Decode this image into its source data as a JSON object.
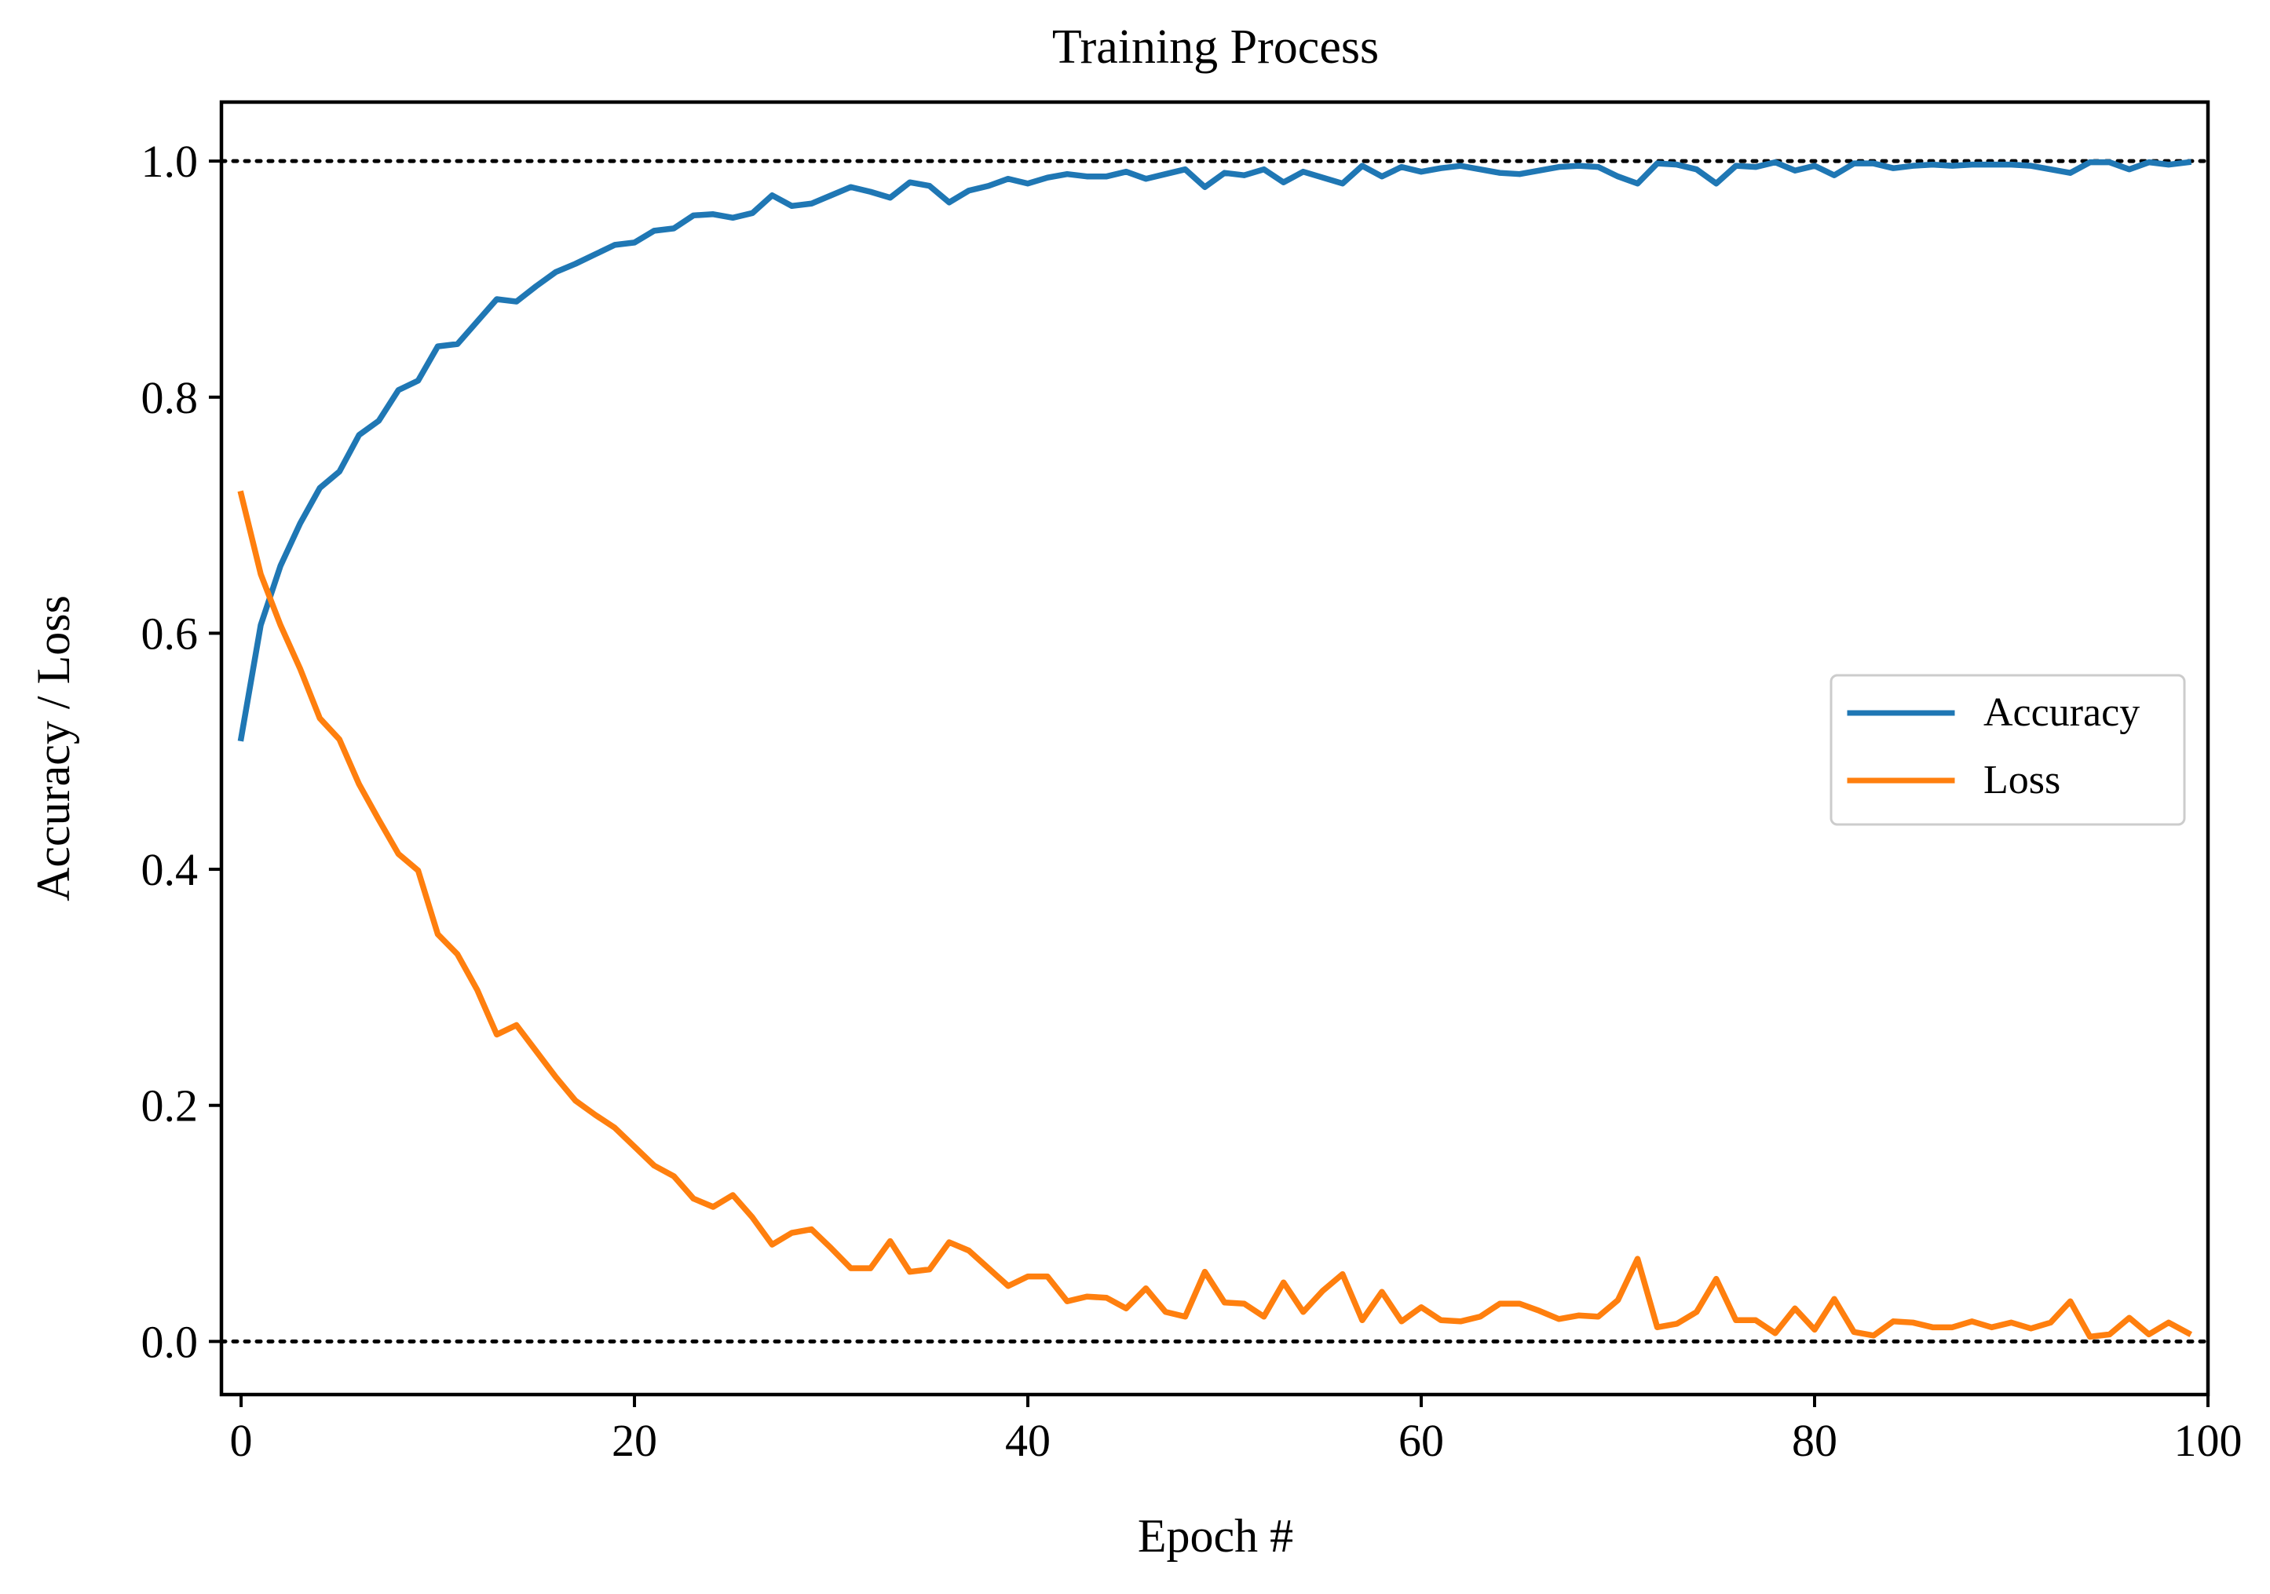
{
  "chart_data": {
    "type": "line",
    "title": "Training Process",
    "xlabel": "Epoch #",
    "ylabel": "Accuracy / Loss",
    "xlim": [
      -1,
      100
    ],
    "ylim": [
      -0.045,
      1.05
    ],
    "xticks": [
      0,
      20,
      40,
      60,
      80,
      100
    ],
    "xtick_labels": [
      "0",
      "20",
      "40",
      "60",
      "80",
      "100"
    ],
    "yticks": [
      0.0,
      0.2,
      0.4,
      0.6,
      0.8,
      1.0
    ],
    "ytick_labels": [
      "0.0",
      "0.2",
      "0.4",
      "0.6",
      "0.8",
      "1.0"
    ],
    "reference_lines": [
      {
        "y": 1.0,
        "style": "dotted",
        "color": "#000000"
      },
      {
        "y": 0.0,
        "style": "dotted",
        "color": "#000000"
      }
    ],
    "legend": {
      "position": "center-right"
    },
    "series": [
      {
        "name": "Accuracy",
        "color": "#1f77b4",
        "values": [
          0.511,
          0.607,
          0.657,
          0.693,
          0.723,
          0.737,
          0.768,
          0.78,
          0.806,
          0.814,
          0.843,
          0.845,
          0.864,
          0.883,
          0.881,
          0.894,
          0.906,
          0.913,
          0.921,
          0.929,
          0.931,
          0.941,
          0.943,
          0.954,
          0.955,
          0.952,
          0.956,
          0.971,
          0.962,
          0.964,
          0.971,
          0.978,
          0.974,
          0.969,
          0.982,
          0.979,
          0.965,
          0.975,
          0.979,
          0.985,
          0.981,
          0.986,
          0.989,
          0.987,
          0.987,
          0.991,
          0.985,
          0.989,
          0.993,
          0.978,
          0.99,
          0.988,
          0.993,
          0.982,
          0.991,
          0.986,
          0.981,
          0.996,
          0.987,
          0.995,
          0.991,
          0.994,
          0.996,
          0.993,
          0.99,
          0.989,
          0.992,
          0.995,
          0.996,
          0.995,
          0.987,
          0.981,
          0.998,
          0.997,
          0.993,
          0.981,
          0.996,
          0.995,
          0.999,
          0.992,
          0.996,
          0.988,
          0.998,
          0.998,
          0.994,
          0.996,
          0.997,
          0.996,
          0.997,
          0.997,
          0.997,
          0.996,
          0.993,
          0.99,
          0.999,
          0.999,
          0.993,
          0.999,
          0.997,
          0.999
        ]
      },
      {
        "name": "Loss",
        "color": "#ff7f0e",
        "values": [
          0.718,
          0.65,
          0.607,
          0.57,
          0.528,
          0.51,
          0.472,
          0.442,
          0.413,
          0.399,
          0.345,
          0.328,
          0.298,
          0.26,
          0.268,
          0.246,
          0.224,
          0.204,
          0.192,
          0.181,
          0.165,
          0.149,
          0.14,
          0.121,
          0.114,
          0.124,
          0.105,
          0.082,
          0.092,
          0.095,
          0.079,
          0.062,
          0.062,
          0.085,
          0.059,
          0.061,
          0.084,
          0.077,
          0.062,
          0.047,
          0.055,
          0.055,
          0.034,
          0.038,
          0.037,
          0.028,
          0.045,
          0.025,
          0.021,
          0.059,
          0.033,
          0.032,
          0.021,
          0.05,
          0.025,
          0.043,
          0.057,
          0.018,
          0.042,
          0.017,
          0.029,
          0.018,
          0.017,
          0.021,
          0.032,
          0.032,
          0.026,
          0.019,
          0.022,
          0.021,
          0.035,
          0.07,
          0.012,
          0.015,
          0.025,
          0.053,
          0.018,
          0.018,
          0.007,
          0.028,
          0.01,
          0.036,
          0.008,
          0.005,
          0.017,
          0.016,
          0.012,
          0.012,
          0.017,
          0.012,
          0.016,
          0.011,
          0.016,
          0.034,
          0.004,
          0.006,
          0.02,
          0.006,
          0.016,
          0.007
        ]
      }
    ]
  }
}
